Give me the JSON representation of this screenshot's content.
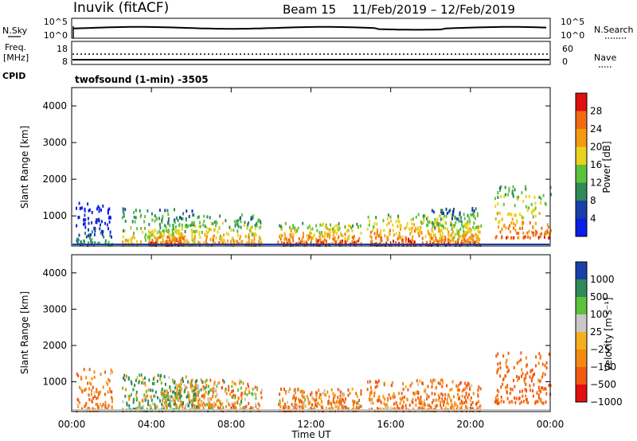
{
  "header": {
    "station": "Inuvik (fitACF)",
    "beam": "Beam 15",
    "date_range": "11/Feb/2019 – 12/Feb/2019"
  },
  "strip_nsky": {
    "left_label": "N.Sky",
    "right_label": "N.Search",
    "left_ticks": [
      "10^5",
      "10^0"
    ],
    "right_ticks": [
      "10^5",
      "10^0"
    ]
  },
  "strip_freq": {
    "left_label_1": "Freq.",
    "left_label_2": "[MHz]",
    "right_label": "Nave",
    "left_ticks": [
      "18",
      "8"
    ],
    "right_ticks": [
      "60",
      "0"
    ]
  },
  "cpid": {
    "label": "CPID",
    "value": "twofsound (1-min) -3505"
  },
  "colors": {
    "power": [
      "#0a1ee6",
      "#1a3fa8",
      "#2e8b57",
      "#5cc23a",
      "#e8d21e",
      "#f59b12",
      "#f26a12",
      "#e01010"
    ],
    "velocity": [
      "#e01010",
      "#f25a12",
      "#f58a12",
      "#f5b020",
      "#c8c8c8",
      "#5cc23a",
      "#2e8b57",
      "#1a3fa8"
    ]
  },
  "chart_data": [
    {
      "type": "heatmap",
      "panel": "power",
      "xlabel": "Time UT",
      "ylabel": "Slant Range [km]",
      "ylim": [
        180,
        4500
      ],
      "y_ticks": [
        1000,
        2000,
        3000,
        4000
      ],
      "x_tick_labels": [
        "00:00",
        "04:00",
        "08:00",
        "12:00",
        "16:00",
        "20:00",
        "00:00"
      ],
      "x_tick_hours": [
        0,
        4,
        8,
        12,
        16,
        20,
        24
      ],
      "colorbar": {
        "label": "Power [dB]",
        "ticks": [
          "28",
          "24",
          "20",
          "16",
          "12",
          "8",
          "4"
        ],
        "range": [
          0,
          30
        ]
      },
      "echo_regions": [
        {
          "t_start": 0.2,
          "t_end": 2.0,
          "r_min": 200,
          "r_max": 1350,
          "value": 10
        },
        {
          "t_start": 2.5,
          "t_end": 6.2,
          "r_min": 200,
          "r_max": 1200,
          "value": 20
        },
        {
          "t_start": 3.8,
          "t_end": 5.6,
          "r_min": 200,
          "r_max": 600,
          "value": 28
        },
        {
          "t_start": 6.0,
          "t_end": 9.5,
          "r_min": 200,
          "r_max": 1050,
          "value": 22
        },
        {
          "t_start": 10.3,
          "t_end": 14.5,
          "r_min": 200,
          "r_max": 800,
          "value": 26
        },
        {
          "t_start": 14.8,
          "t_end": 20.5,
          "r_min": 200,
          "r_max": 1050,
          "value": 26
        },
        {
          "t_start": 18.0,
          "t_end": 20.5,
          "r_min": 300,
          "r_max": 1200,
          "value": 20
        },
        {
          "t_start": 21.2,
          "t_end": 24.0,
          "r_min": 400,
          "r_max": 1800,
          "value": 24
        }
      ]
    },
    {
      "type": "heatmap",
      "panel": "velocity",
      "xlabel": "Time UT",
      "ylabel": "Slant Range [km]",
      "ylim": [
        180,
        4500
      ],
      "y_ticks": [
        1000,
        2000,
        3000,
        4000
      ],
      "x_tick_labels": [
        "00:00",
        "04:00",
        "08:00",
        "12:00",
        "16:00",
        "20:00",
        "00:00"
      ],
      "x_tick_hours": [
        0,
        4,
        8,
        12,
        16,
        20,
        24
      ],
      "colorbar": {
        "label": "Velocity [m s⁻¹]",
        "ticks": [
          "1000",
          "500",
          "100",
          "25",
          "−25",
          "−100",
          "−500",
          "−1000"
        ]
      },
      "echo_regions": [
        {
          "t_start": 0.2,
          "t_end": 2.0,
          "r_min": 200,
          "r_max": 1350,
          "value": -200
        },
        {
          "t_start": 2.5,
          "t_end": 6.2,
          "r_min": 200,
          "r_max": 1200,
          "value": 50
        },
        {
          "t_start": 4.5,
          "t_end": 7.0,
          "r_min": 300,
          "r_max": 1050,
          "value": 0
        },
        {
          "t_start": 6.0,
          "t_end": 9.5,
          "r_min": 200,
          "r_max": 1050,
          "value": -100
        },
        {
          "t_start": 10.3,
          "t_end": 14.5,
          "r_min": 200,
          "r_max": 800,
          "value": -150
        },
        {
          "t_start": 14.8,
          "t_end": 20.5,
          "r_min": 200,
          "r_max": 1050,
          "value": -200
        },
        {
          "t_start": 21.2,
          "t_end": 24.0,
          "r_min": 400,
          "r_max": 1800,
          "value": -300
        }
      ]
    }
  ]
}
